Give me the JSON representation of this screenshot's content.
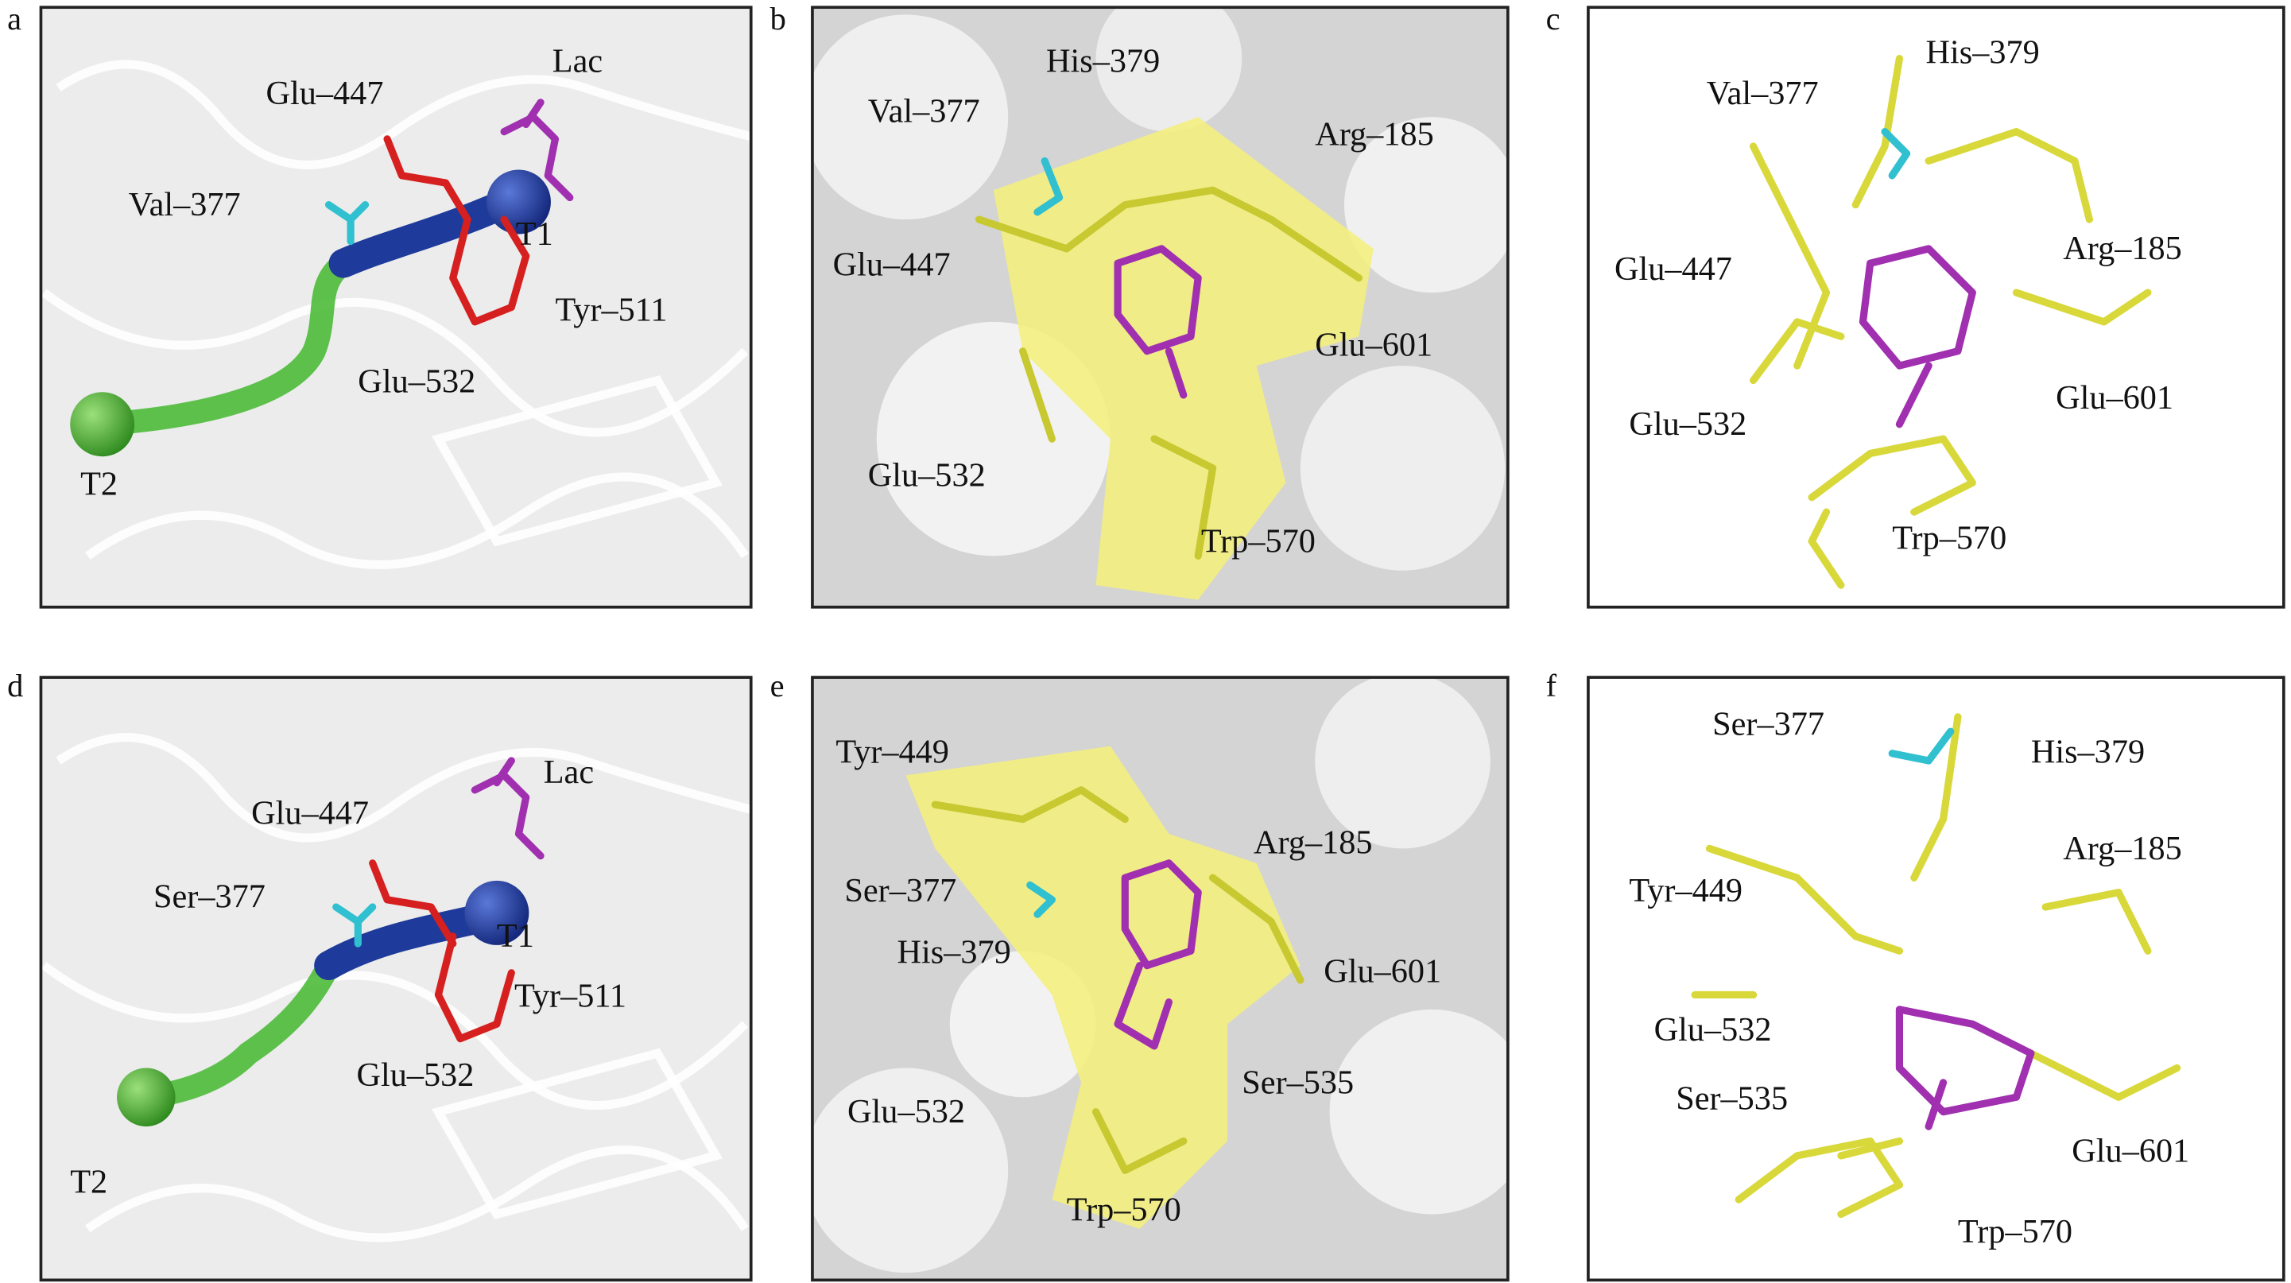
{
  "panels": [
    {
      "letter": "a",
      "labels": [
        "Glu–447",
        "Lac",
        "Val–377",
        "T1",
        "Tyr–511",
        "Glu–532",
        "T2"
      ]
    },
    {
      "letter": "b",
      "labels": [
        "His–379",
        "Val–377",
        "Arg–185",
        "Glu–447",
        "Glu–601",
        "Glu–532",
        "Trp–570"
      ]
    },
    {
      "letter": "c",
      "labels": [
        "His–379",
        "Val–377",
        "Arg–185",
        "Glu–447",
        "Glu–601",
        "Glu–532",
        "Trp–570"
      ]
    },
    {
      "letter": "d",
      "labels": [
        "Lac",
        "Glu–447",
        "Ser–377",
        "T1",
        "Tyr–511",
        "Glu–532",
        "T2"
      ]
    },
    {
      "letter": "e",
      "labels": [
        "Tyr–449",
        "Arg–185",
        "Ser–377",
        "His–379",
        "Glu–601",
        "Ser–535",
        "Glu–532",
        "Trp–570"
      ]
    },
    {
      "letter": "f",
      "labels": [
        "Ser–377",
        "His–379",
        "Arg–185",
        "Tyr–449",
        "Glu–532",
        "Ser–535",
        "Glu–601",
        "Trp–570"
      ]
    }
  ]
}
